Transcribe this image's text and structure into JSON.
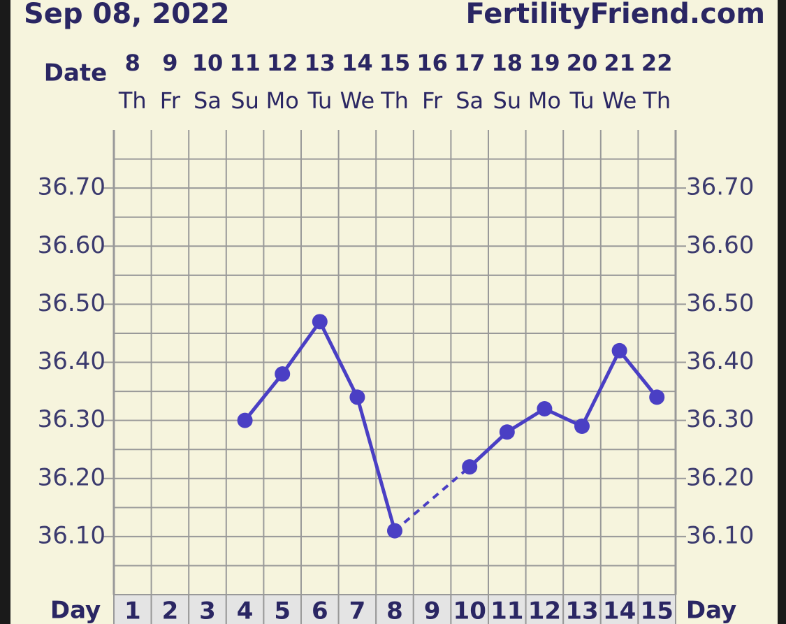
{
  "chart_data": {
    "type": "line",
    "title": "Sep 08, 2022",
    "site": "FertilityFriend.com",
    "date_label": "Date",
    "dates": [
      8,
      9,
      10,
      11,
      12,
      13,
      14,
      15,
      16,
      17,
      18,
      19,
      20,
      21,
      22
    ],
    "weekdays": [
      "Th",
      "Fr",
      "Sa",
      "Su",
      "Mo",
      "Tu",
      "We",
      "Th",
      "Fr",
      "Sa",
      "Su",
      "Mo",
      "Tu",
      "We",
      "Th"
    ],
    "day_label": "Day",
    "categories": [
      1,
      2,
      3,
      4,
      5,
      6,
      7,
      8,
      9,
      10,
      11,
      12,
      13,
      14,
      15
    ],
    "series": [
      {
        "color": "#4a3fc4",
        "values": [
          null,
          null,
          null,
          36.3,
          36.38,
          36.47,
          36.34,
          36.11,
          null,
          36.22,
          36.28,
          36.32,
          36.29,
          36.42,
          36.34
        ]
      }
    ],
    "ylim": [
      36.0,
      36.8
    ],
    "yticks": [
      {
        "value": 36.1,
        "label": "36.10"
      },
      {
        "value": 36.2,
        "label": "36.20"
      },
      {
        "value": 36.3,
        "label": "36.30"
      },
      {
        "value": 36.4,
        "label": "36.40"
      },
      {
        "value": 36.5,
        "label": "36.50"
      },
      {
        "value": 36.6,
        "label": "36.60"
      },
      {
        "value": 36.7,
        "label": "36.70"
      }
    ],
    "minor_yticks": [
      36.05,
      36.15,
      36.25,
      36.35,
      36.45,
      36.55,
      36.65,
      36.75
    ],
    "grid": true
  }
}
